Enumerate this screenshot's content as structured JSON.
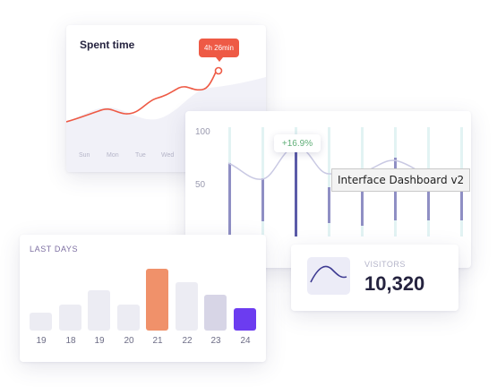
{
  "spent_time": {
    "title": "Spent time",
    "tooltip": "4h 26min",
    "days": [
      "Sun",
      "Mon",
      "Tue",
      "Wed"
    ]
  },
  "analytics": {
    "axis_labels": [
      "100",
      "50"
    ],
    "growth_badge": "+16.9%",
    "hover_tooltip": "Interface Dashboard v2"
  },
  "visitors": {
    "label": "VISITORS",
    "value": "10,320"
  },
  "last_days": {
    "title": "LAST DAYS",
    "labels": [
      "19",
      "18",
      "19",
      "20",
      "21",
      "22",
      "23",
      "24"
    ]
  },
  "colors": {
    "accent_red": "#ee5a45",
    "bar_highlight_orange": "#f0916a",
    "bar_purple": "#6c3cf0",
    "bar_default": "#ececf3",
    "growth_green": "#5fae77"
  },
  "chart_data": [
    {
      "type": "line",
      "title": "Spent time",
      "x": [
        "Sun",
        "Mon",
        "Tue",
        "Wed"
      ],
      "annotation": "4h 26min"
    },
    {
      "type": "bar",
      "title": "LAST DAYS",
      "categories": [
        "19",
        "18",
        "19",
        "20",
        "21",
        "22",
        "23",
        "24"
      ],
      "values": [
        3,
        4,
        6,
        4,
        9,
        7,
        5,
        3
      ],
      "highlight": [
        "21",
        "24"
      ]
    },
    {
      "type": "line",
      "yticks": [
        100,
        50
      ],
      "annotation": "+16.9%"
    }
  ]
}
